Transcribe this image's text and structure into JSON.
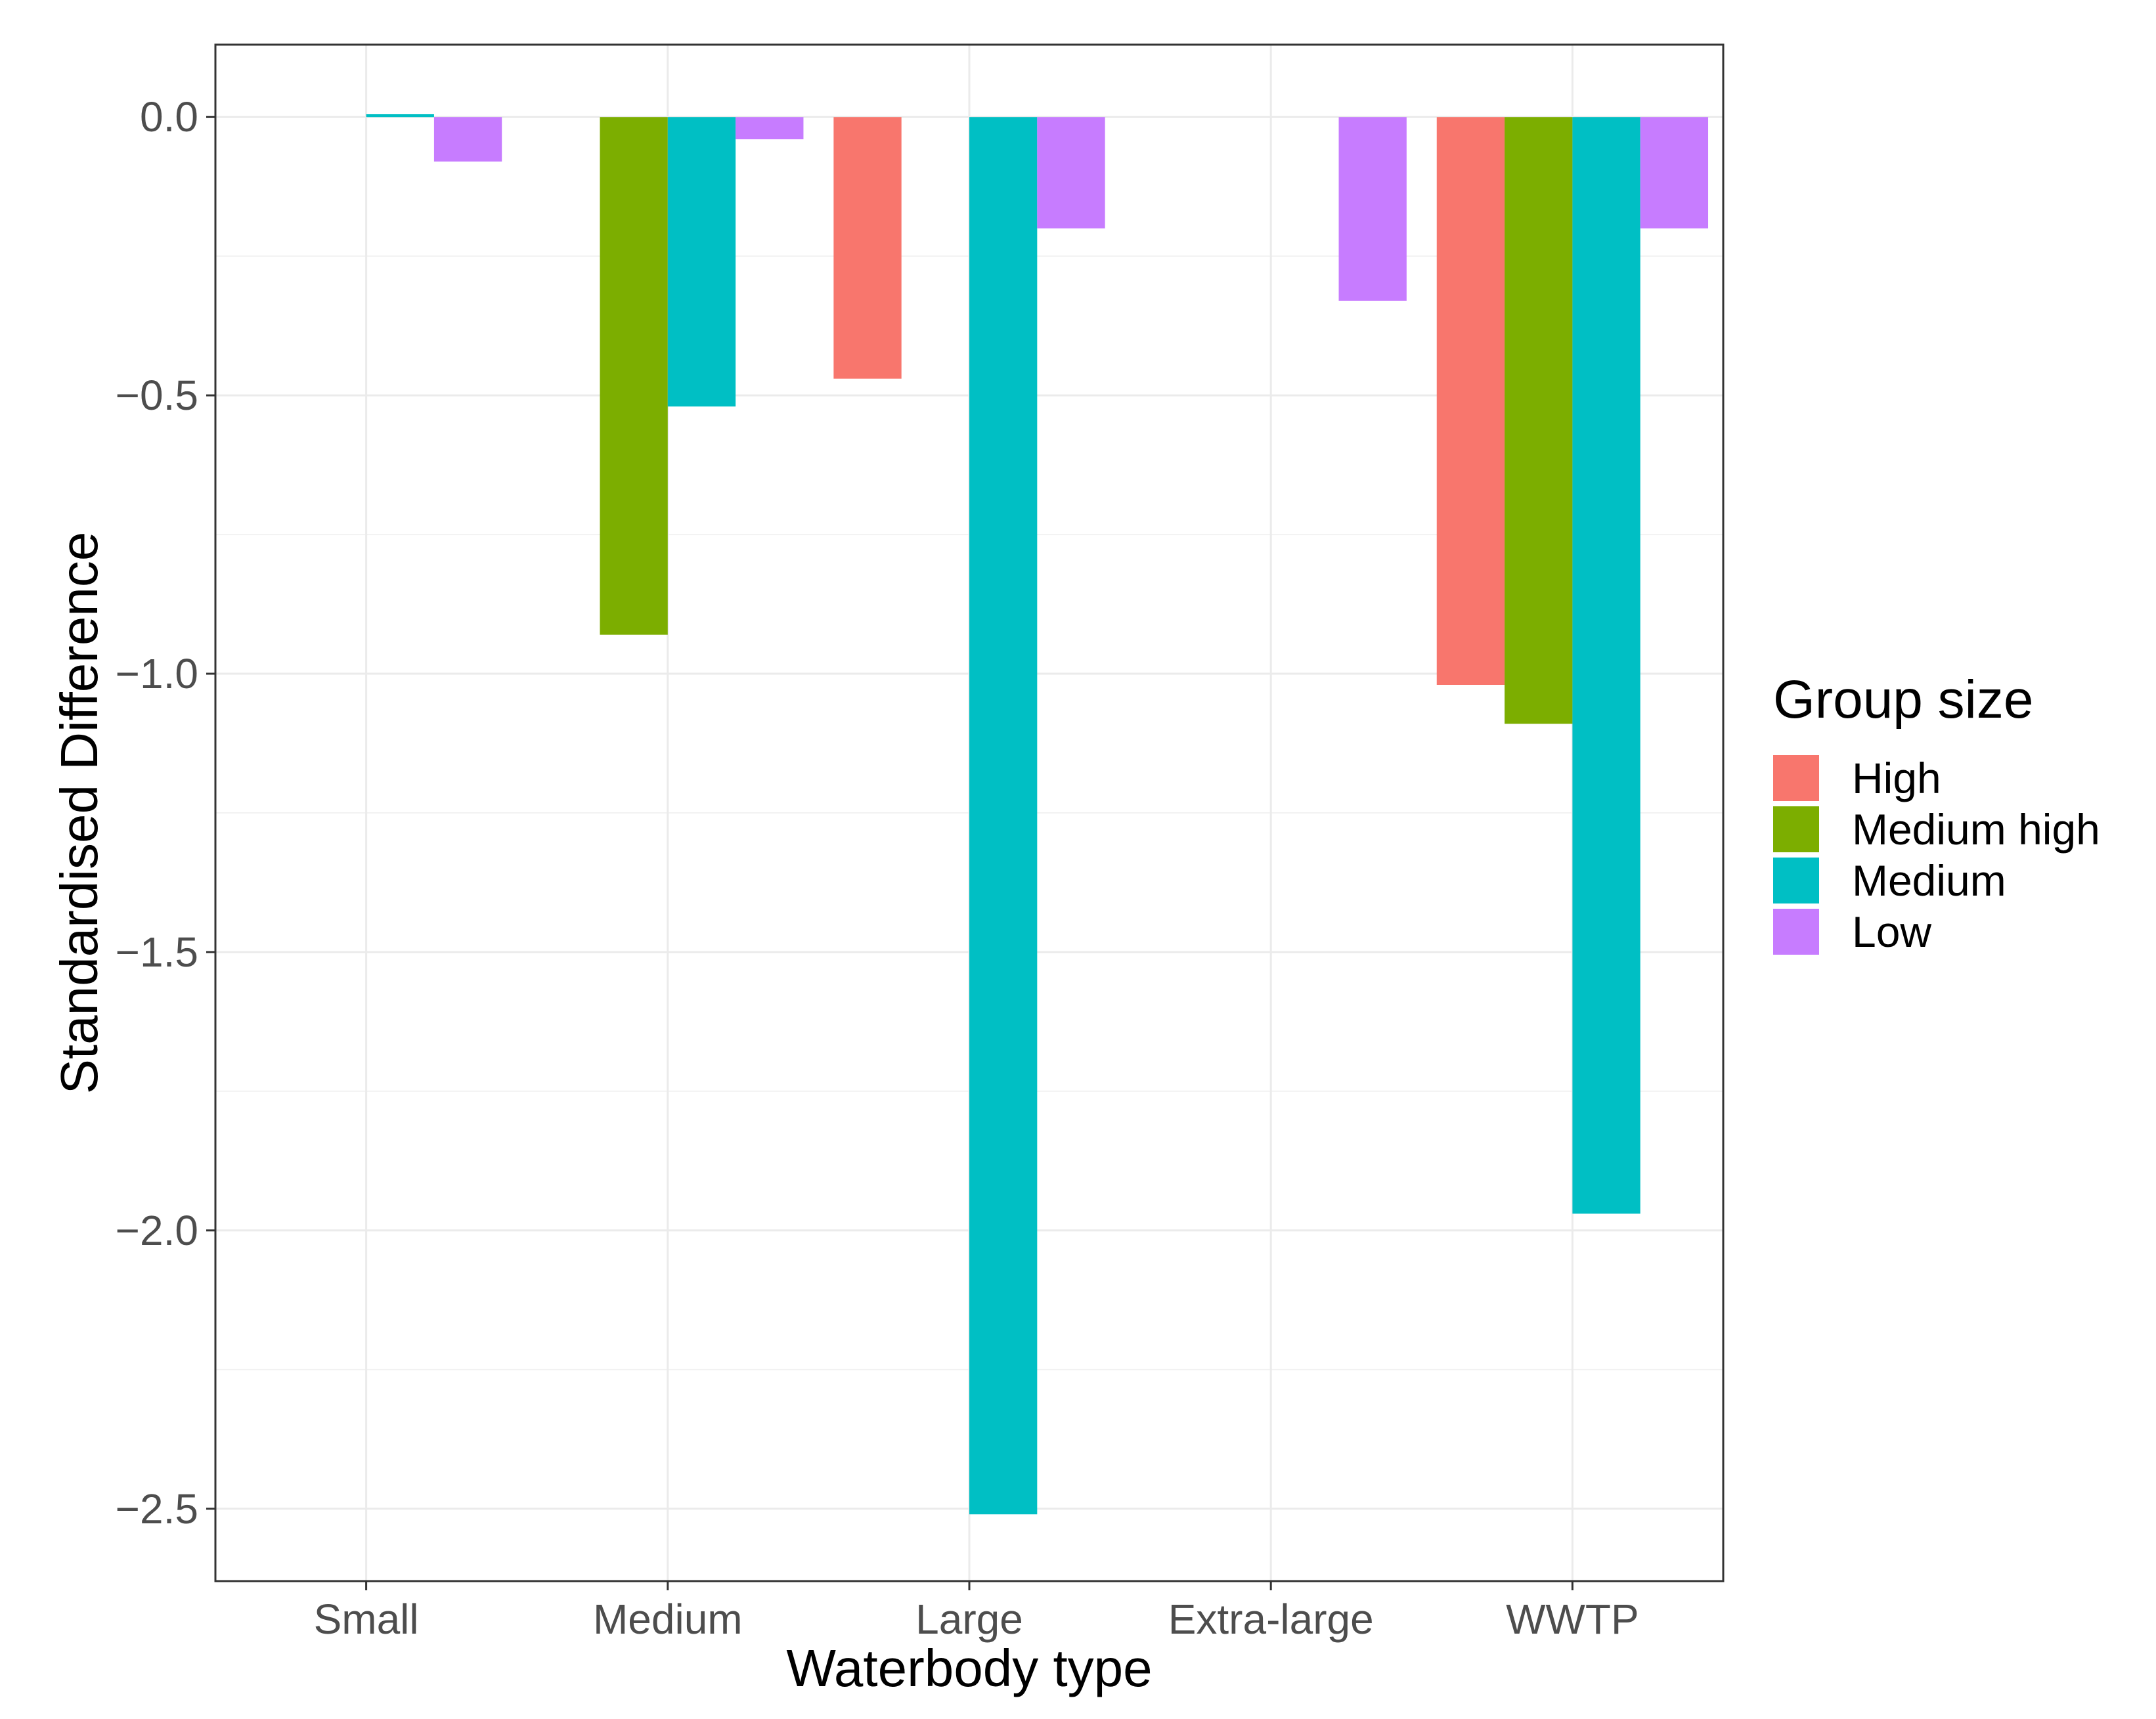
{
  "chart_data": {
    "type": "bar",
    "title": "",
    "xlabel": "Waterbody type",
    "ylabel": "Standardised Difference",
    "categories": [
      "Small",
      "Medium",
      "Large",
      "Extra-large",
      "WWTP"
    ],
    "ylim": [
      -2.63,
      0.13
    ],
    "yticks": [
      0.0,
      -0.5,
      -1.0,
      -1.5,
      -2.0,
      -2.5
    ],
    "ytick_labels": [
      "0.0",
      "−0.5",
      "−1.0",
      "−1.5",
      "−2.0",
      "−2.5"
    ],
    "grid": true,
    "legend": {
      "title": "Group size",
      "placement": "right"
    },
    "series": [
      {
        "name": "High",
        "color": "#F8766D",
        "values": [
          null,
          null,
          -0.47,
          null,
          -1.02
        ]
      },
      {
        "name": "Medium high",
        "color": "#7CAE00",
        "values": [
          null,
          -0.93,
          null,
          null,
          -1.09
        ]
      },
      {
        "name": "Medium",
        "color": "#00BFC4",
        "values": [
          0.005,
          -0.52,
          -2.51,
          null,
          -1.97
        ]
      },
      {
        "name": "Low",
        "color": "#C77CFF",
        "values": [
          -0.08,
          -0.04,
          -0.2,
          -0.33,
          -0.2
        ]
      }
    ]
  }
}
